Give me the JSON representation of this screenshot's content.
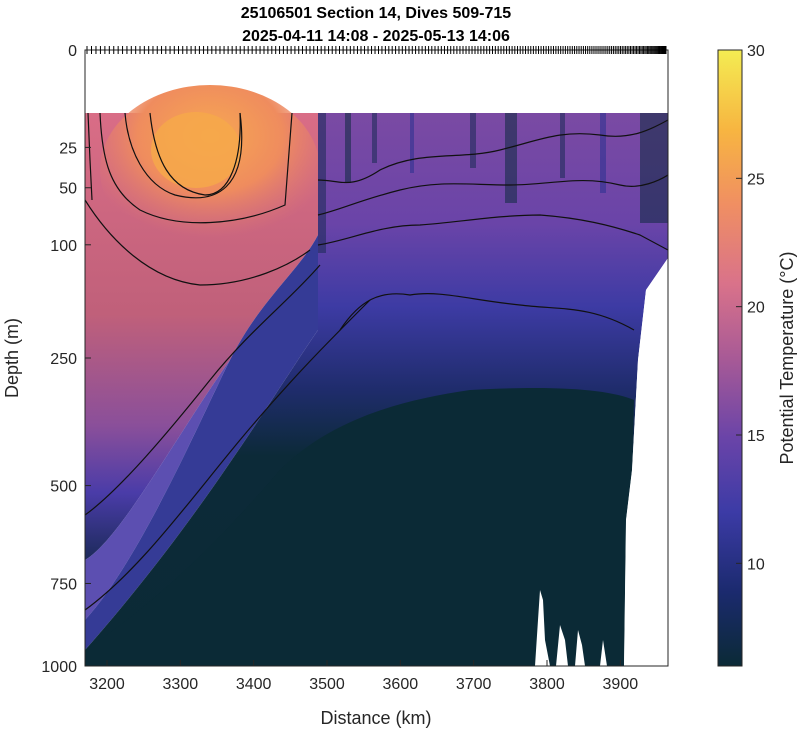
{
  "chart_data": {
    "type": "heatmap",
    "title_lines": [
      "25106501 Section 14, Dives 509-715",
      "2025-04-11 14:08 - 2025-05-13 14:06"
    ],
    "xlabel": "Distance (km)",
    "ylabel": "Depth (m)",
    "xlim": [
      3170,
      3965
    ],
    "x_ticks": [
      3200,
      3300,
      3400,
      3500,
      3600,
      3700,
      3800,
      3900
    ],
    "y_ticks": [
      0,
      25,
      50,
      100,
      250,
      500,
      750,
      1000
    ],
    "y_scale": "square-root",
    "colorbar": {
      "label": "Potential Temperature (°C)",
      "range": [
        6,
        30
      ],
      "ticks": [
        10,
        15,
        20,
        25,
        30
      ],
      "colormap": [
        "#0b2a36",
        "#1b2a6e",
        "#3c3ba6",
        "#6a44a8",
        "#a85a96",
        "#d9728a",
        "#f08f62",
        "#f7b541",
        "#f4ec52"
      ]
    },
    "contour_levels": [
      8,
      10,
      12,
      14,
      16,
      18,
      20,
      22
    ],
    "surface_temperature_profile": [
      {
        "distance": 3180,
        "temperature": 20.5
      },
      {
        "distance": 3320,
        "temperature": 23.5
      },
      {
        "distance": 3440,
        "temperature": 21.5
      },
      {
        "distance": 3480,
        "temperature": 12.5
      },
      {
        "distance": 3600,
        "temperature": 11.5
      },
      {
        "distance": 3800,
        "temperature": 12.0
      },
      {
        "distance": 3950,
        "temperature": 11.0
      }
    ],
    "dive_count": 207,
    "grid": false
  }
}
